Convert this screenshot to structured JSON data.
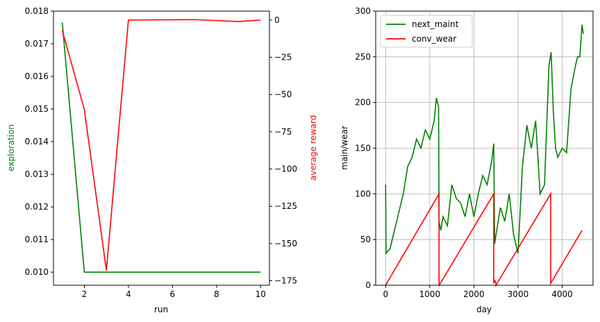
{
  "colors": {
    "green": "#008000",
    "red": "#ff0000",
    "axis": "#000000",
    "grid": "#b0b0b0"
  },
  "chart_data": [
    {
      "type": "line",
      "xlabel": "run",
      "ylabel_left": "exploration",
      "ylabel_right": "average reward",
      "xlim": [
        0.6,
        10.4
      ],
      "ylim_left": [
        0.0096,
        0.018
      ],
      "ylim_right": [
        -178,
        6
      ],
      "x_ticks": [
        2,
        4,
        6,
        8,
        10
      ],
      "x_tick_labels": [
        "2",
        "4",
        "6",
        "8",
        "10"
      ],
      "y_left_ticks": [
        0.01,
        0.011,
        0.012,
        0.013,
        0.014,
        0.015,
        0.016,
        0.017,
        0.018
      ],
      "y_left_tick_labels": [
        "0.010",
        "0.011",
        "0.012",
        "0.013",
        "0.014",
        "0.015",
        "0.016",
        "0.017",
        "0.018"
      ],
      "y_right_ticks": [
        0,
        -25,
        -50,
        -75,
        -100,
        -125,
        -150,
        -175
      ],
      "y_right_tick_labels": [
        "0",
        "−25",
        "−50",
        "−75",
        "−100",
        "−125",
        "−150",
        "−175"
      ],
      "grid": false,
      "series": [
        {
          "axis": "left",
          "color": "#008000",
          "x": [
            1,
            2,
            3,
            4,
            5,
            6,
            7,
            8,
            9,
            10
          ],
          "y": [
            0.01765,
            0.01,
            0.01,
            0.01,
            0.01,
            0.01,
            0.01,
            0.01,
            0.01,
            0.01
          ]
        },
        {
          "axis": "right",
          "color": "#ff0000",
          "x": [
            1,
            2,
            3,
            4,
            7,
            9,
            10
          ],
          "y": [
            -7,
            -60,
            -168,
            0,
            0.3,
            -1,
            0
          ]
        }
      ]
    },
    {
      "type": "line",
      "xlabel": "day",
      "ylabel": "main/wear",
      "xlim": [
        -225,
        4700
      ],
      "ylim": [
        0,
        300
      ],
      "x_ticks": [
        0,
        1000,
        2000,
        3000,
        4000
      ],
      "x_tick_labels": [
        "0",
        "1000",
        "2000",
        "3000",
        "4000"
      ],
      "y_ticks": [
        0,
        50,
        100,
        150,
        200,
        250,
        300
      ],
      "y_tick_labels": [
        "0",
        "50",
        "100",
        "150",
        "200",
        "250",
        "300"
      ],
      "grid": true,
      "legend": "upper-left",
      "series": [
        {
          "name": "next_maint",
          "color": "#008000",
          "x": [
            0,
            10,
            100,
            200,
            300,
            400,
            500,
            600,
            700,
            800,
            900,
            1000,
            1100,
            1150,
            1200,
            1210,
            1250,
            1300,
            1400,
            1500,
            1600,
            1700,
            1800,
            1900,
            2000,
            2100,
            2200,
            2300,
            2400,
            2450,
            2470,
            2500,
            2600,
            2700,
            2800,
            2900,
            3000,
            3100,
            3200,
            3300,
            3400,
            3500,
            3600,
            3700,
            3750,
            3800,
            3850,
            3900,
            4000,
            4100,
            4200,
            4300,
            4350,
            4400,
            4450,
            4480
          ],
          "y": [
            110,
            35,
            40,
            60,
            80,
            100,
            130,
            140,
            160,
            150,
            170,
            160,
            180,
            205,
            195,
            70,
            60,
            75,
            65,
            110,
            95,
            90,
            75,
            100,
            75,
            100,
            120,
            110,
            135,
            155,
            45,
            55,
            85,
            70,
            100,
            55,
            35,
            130,
            175,
            150,
            180,
            100,
            110,
            240,
            255,
            190,
            150,
            140,
            150,
            145,
            215,
            240,
            250,
            250,
            285,
            275
          ]
        },
        {
          "name": "conv_wear",
          "color": "#ff0000",
          "x": [
            0,
            1210,
            1210,
            1215,
            2450,
            2450,
            2480,
            2500,
            2500,
            3740,
            3740,
            4450
          ],
          "y": [
            0,
            100,
            2,
            0,
            100,
            2,
            5,
            2,
            0,
            100,
            2,
            60
          ]
        }
      ]
    }
  ]
}
